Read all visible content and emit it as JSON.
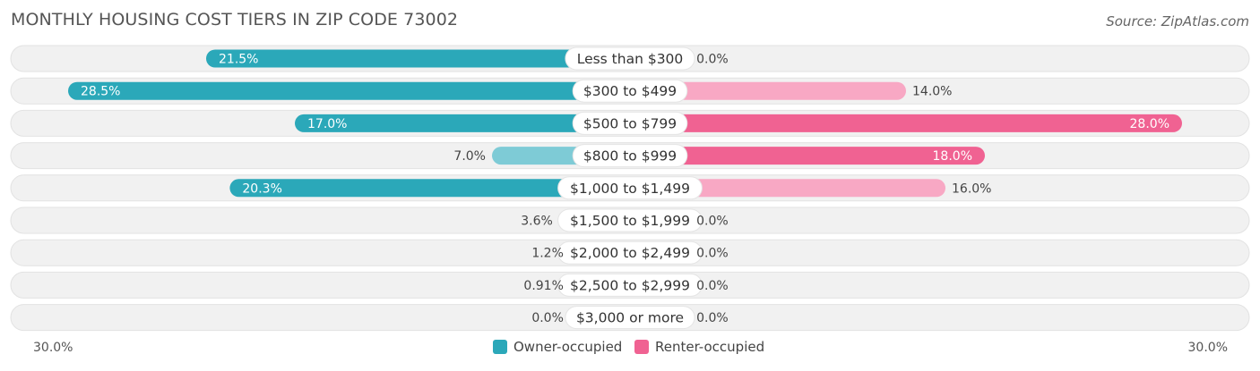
{
  "title": "MONTHLY HOUSING COST TIERS IN ZIP CODE 73002",
  "source": "Source: ZipAtlas.com",
  "colors": {
    "owner": "#2ba8b9",
    "owner_light": "#7ecbd6",
    "renter": "#f06292",
    "renter_light": "#f8a8c4",
    "track": "#f1f1f1"
  },
  "legend": {
    "owner": "Owner-occupied",
    "renter": "Renter-occupied"
  },
  "axis": {
    "left": "30.0%",
    "right": "30.0%"
  },
  "chart_data": {
    "type": "bar",
    "orientation": "horizontal-diverging",
    "xlim": [
      -30,
      30
    ],
    "categories": [
      "Less than $300",
      "$300 to $499",
      "$500 to $799",
      "$800 to $999",
      "$1,000 to $1,499",
      "$1,500 to $1,999",
      "$2,000 to $2,499",
      "$2,500 to $2,999",
      "$3,000 or more"
    ],
    "series": [
      {
        "name": "Owner-occupied",
        "values": [
          21.5,
          28.5,
          17.0,
          7.0,
          20.3,
          3.6,
          1.2,
          0.91,
          0.0
        ],
        "labels": [
          "21.5%",
          "28.5%",
          "17.0%",
          "7.0%",
          "20.3%",
          "3.6%",
          "1.2%",
          "0.91%",
          "0.0%"
        ]
      },
      {
        "name": "Renter-occupied",
        "values": [
          0.0,
          14.0,
          28.0,
          18.0,
          16.0,
          0.0,
          0.0,
          0.0,
          0.0
        ],
        "labels": [
          "0.0%",
          "14.0%",
          "28.0%",
          "18.0%",
          "16.0%",
          "0.0%",
          "0.0%",
          "0.0%",
          "0.0%"
        ]
      }
    ]
  }
}
